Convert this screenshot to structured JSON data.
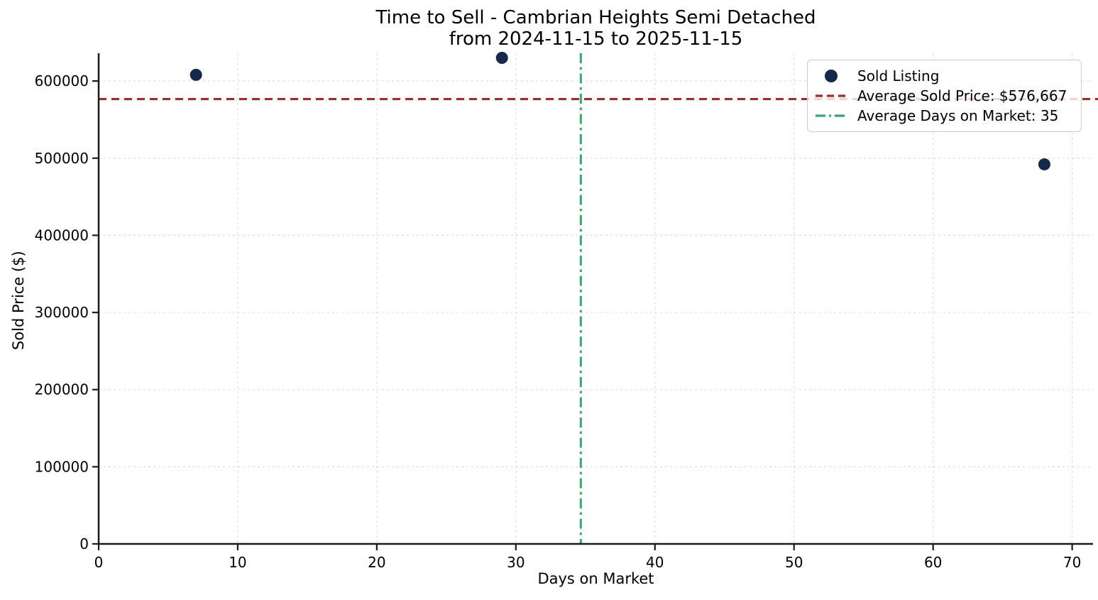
{
  "chart_data": {
    "type": "scatter",
    "title": "Time to Sell - Cambrian Heights Semi Detached\nfrom 2024-11-15 to 2025-11-15",
    "title_line1": "Time to Sell - Cambrian Heights Semi Detached",
    "title_line2": "from 2024-11-15 to 2025-11-15",
    "xlabel": "Days on Market",
    "ylabel": "Sold Price ($)",
    "xlim": [
      0,
      71.5
    ],
    "ylim": [
      0,
      636000
    ],
    "x_ticks": [
      0,
      10,
      20,
      30,
      40,
      50,
      60,
      70
    ],
    "y_ticks": [
      0,
      100000,
      200000,
      300000,
      400000,
      500000,
      600000
    ],
    "grid": true,
    "legend_position": "upper right",
    "series": [
      {
        "name": "Sold Listing",
        "type": "scatter",
        "color": "#13294B",
        "points": [
          {
            "x": 7,
            "y": 608000
          },
          {
            "x": 29,
            "y": 630000
          },
          {
            "x": 68,
            "y": 492000
          }
        ]
      }
    ],
    "reference_lines": [
      {
        "label": "Average Sold Price: $576,667",
        "orientation": "horizontal",
        "value": 576667,
        "color": "#B22222",
        "style": "dashed"
      },
      {
        "label": "Average Days on Market: 35",
        "orientation": "vertical",
        "value": 34.67,
        "color": "#2EAE60",
        "style": "dashdot"
      }
    ],
    "legend": [
      {
        "label": "Sold Listing",
        "marker": "circle",
        "color": "#13294B"
      },
      {
        "label": "Average Sold Price: $576,667",
        "marker": "dashed-line",
        "color": "#B22222"
      },
      {
        "label": "Average Days on Market: 35",
        "marker": "dashdot-line",
        "color": "#2EAE60"
      }
    ]
  }
}
